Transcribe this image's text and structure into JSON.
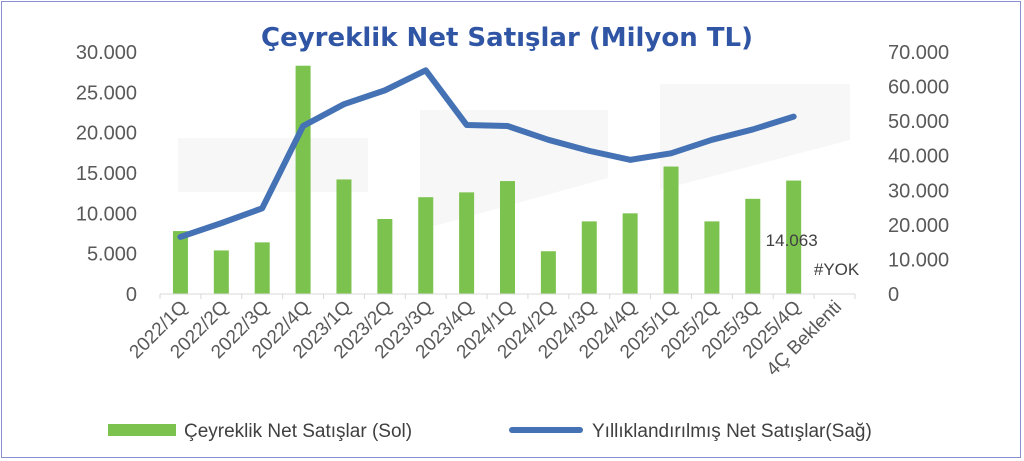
{
  "chart_data": {
    "type": "bar",
    "title": "Çeyreklik Net Satışlar (Milyon TL)",
    "categories": [
      "2022/1Q",
      "2022/2Q",
      "2022/3Q",
      "2022/4Q",
      "2023/1Q",
      "2023/2Q",
      "2023/3Q",
      "2023/4Q",
      "2024/1Q",
      "2024/2Q",
      "2024/3Q",
      "2024/4Q",
      "2025/1Q",
      "2025/2Q",
      "2025/3Q",
      "2025/4Q",
      "4Ç Beklenti"
    ],
    "series": [
      {
        "name": "Çeyreklik Net Satışlar (Sol)",
        "type": "bar",
        "axis": "left",
        "color": "#7cc24e",
        "values": [
          7800,
          5400,
          6400,
          28300,
          14200,
          9300,
          12000,
          12600,
          14000,
          5300,
          9000,
          10000,
          15800,
          9000,
          11800,
          14063,
          null
        ]
      },
      {
        "name": "Yıllıklandırılmış Net Satışlar(Sağ)",
        "type": "line",
        "axis": "right",
        "color": "#4472b4",
        "values": [
          16500,
          20500,
          24800,
          48600,
          54900,
          58900,
          64700,
          48900,
          48600,
          44600,
          41400,
          38800,
          40700,
          44600,
          47600,
          51300,
          null
        ]
      }
    ],
    "y_left": {
      "ylim": [
        0,
        30000
      ],
      "ticks": [
        "0",
        "5.000",
        "10.000",
        "15.000",
        "20.000",
        "25.000",
        "30.000"
      ]
    },
    "y_right": {
      "ylim": [
        0,
        70000
      ],
      "ticks": [
        "0",
        "10.000",
        "20.000",
        "30.000",
        "40.000",
        "50.000",
        "60.000",
        "70.000"
      ]
    },
    "annotations": [
      {
        "category": "2025/4Q",
        "text": "14.063"
      },
      {
        "category": "4Ç Beklenti",
        "text": "#YOK"
      }
    ],
    "title_color": "#2f55a4",
    "legend_position": "bottom",
    "grid": false
  }
}
